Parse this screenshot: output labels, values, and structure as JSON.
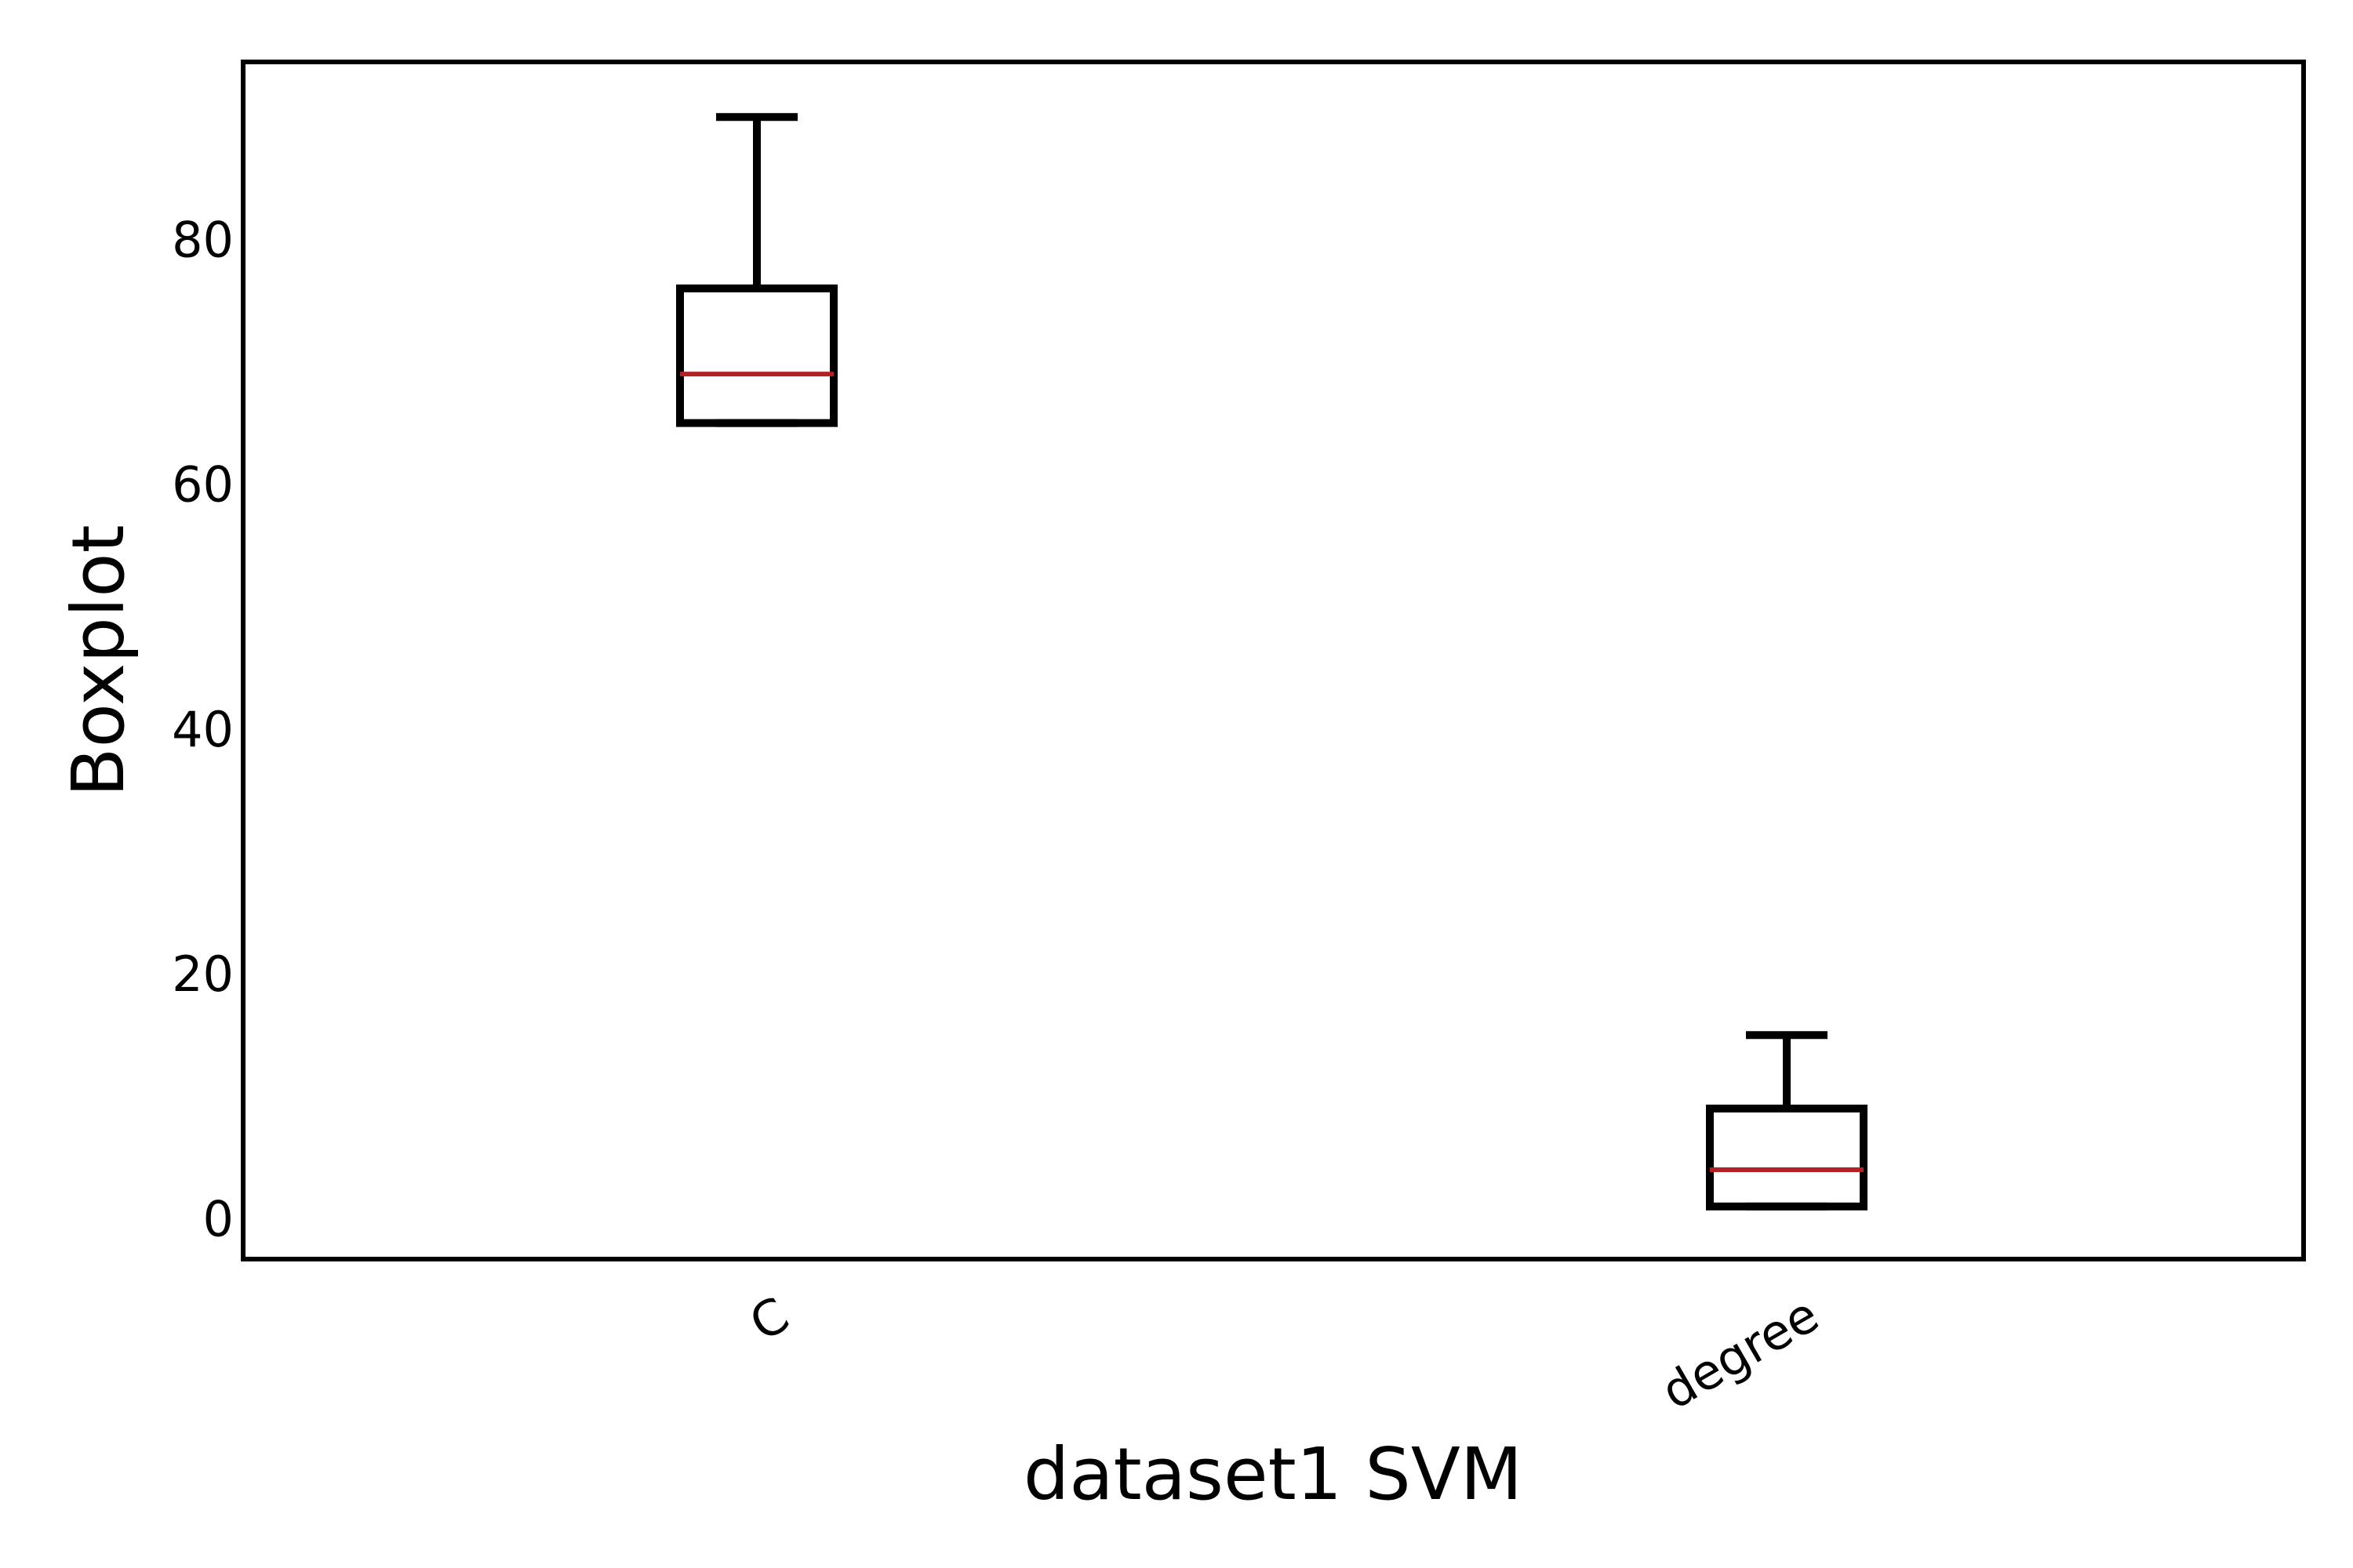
{
  "chart_data": {
    "type": "boxplot",
    "title": "",
    "xlabel": "dataset1 SVM",
    "ylabel": "Boxplot",
    "categories": [
      "C",
      "degree"
    ],
    "boxes": [
      {
        "category": "C",
        "whisker_low": 65,
        "q1": 65,
        "median": 69,
        "q3": 76,
        "whisker_high": 90
      },
      {
        "category": "degree",
        "whisker_low": 1,
        "q1": 1,
        "median": 4,
        "q3": 9,
        "whisker_high": 15
      }
    ],
    "yticks": [
      "0",
      "20",
      "40",
      "60",
      "80"
    ],
    "ylim": [
      -3.3,
      94.5
    ],
    "grid": false,
    "legend": "none",
    "colors": {
      "box": "#000000",
      "median": "#b22222",
      "axes": "#000000"
    }
  }
}
